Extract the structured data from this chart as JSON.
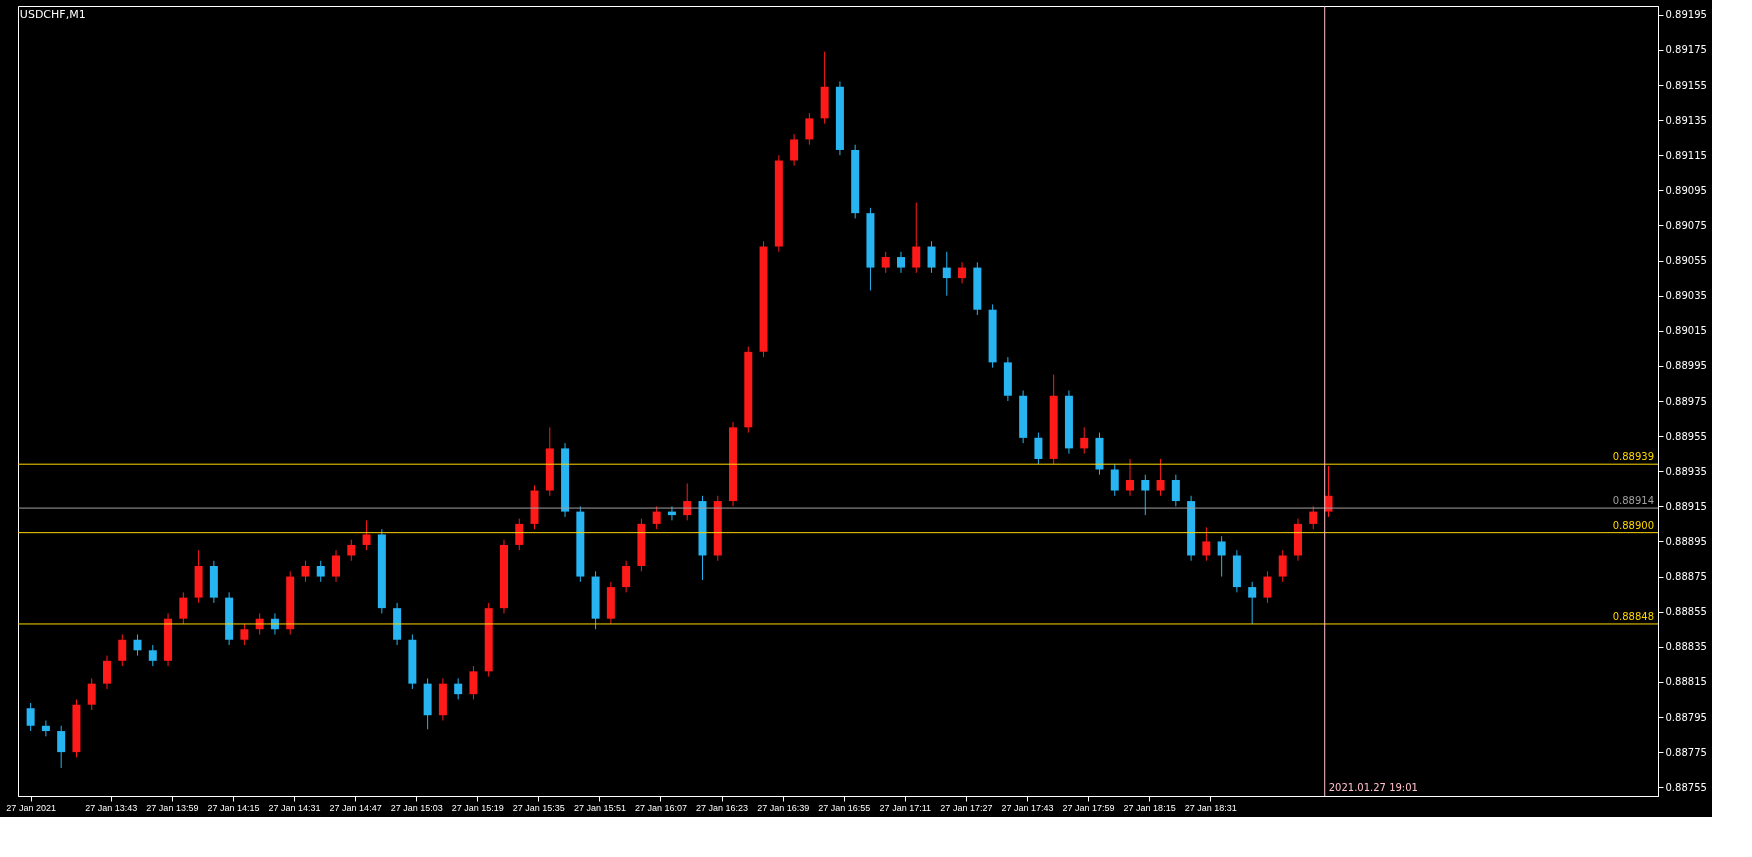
{
  "chart_data": {
    "type": "candlestick",
    "title": "USDCHF,M1",
    "x": [
      "2021-01-27T13:22",
      "2021-01-27T13:26",
      "2021-01-27T13:30",
      "2021-01-27T13:34",
      "2021-01-27T13:38",
      "2021-01-27T13:42",
      "2021-01-27T13:46",
      "2021-01-27T13:50",
      "2021-01-27T13:54",
      "2021-01-27T13:58",
      "2021-01-27T14:02",
      "2021-01-27T14:06",
      "2021-01-27T14:10",
      "2021-01-27T14:14",
      "2021-01-27T14:18",
      "2021-01-27T14:22",
      "2021-01-27T14:26",
      "2021-01-27T14:30",
      "2021-01-27T14:34",
      "2021-01-27T14:38",
      "2021-01-27T14:42",
      "2021-01-27T14:46",
      "2021-01-27T14:50",
      "2021-01-27T14:54",
      "2021-01-27T14:58",
      "2021-01-27T15:02",
      "2021-01-27T15:06",
      "2021-01-27T15:10",
      "2021-01-27T15:14",
      "2021-01-27T15:18",
      "2021-01-27T15:22",
      "2021-01-27T15:26",
      "2021-01-27T15:30",
      "2021-01-27T15:34",
      "2021-01-27T15:38",
      "2021-01-27T15:42",
      "2021-01-27T15:46",
      "2021-01-27T15:50",
      "2021-01-27T15:54",
      "2021-01-27T15:58",
      "2021-01-27T16:02",
      "2021-01-27T16:06",
      "2021-01-27T16:10",
      "2021-01-27T16:14",
      "2021-01-27T16:18",
      "2021-01-27T16:22",
      "2021-01-27T16:26",
      "2021-01-27T16:30",
      "2021-01-27T16:34",
      "2021-01-27T16:38",
      "2021-01-27T16:42",
      "2021-01-27T16:46",
      "2021-01-27T16:50",
      "2021-01-27T16:54",
      "2021-01-27T16:58",
      "2021-01-27T17:02",
      "2021-01-27T17:06",
      "2021-01-27T17:10",
      "2021-01-27T17:14",
      "2021-01-27T17:18",
      "2021-01-27T17:22",
      "2021-01-27T17:26",
      "2021-01-27T17:30",
      "2021-01-27T17:34",
      "2021-01-27T17:38",
      "2021-01-27T17:42",
      "2021-01-27T17:46",
      "2021-01-27T17:50",
      "2021-01-27T17:54",
      "2021-01-27T17:58",
      "2021-01-27T18:02",
      "2021-01-27T18:06",
      "2021-01-27T18:10",
      "2021-01-27T18:14",
      "2021-01-27T18:18",
      "2021-01-27T18:22",
      "2021-01-27T18:26",
      "2021-01-27T18:30",
      "2021-01-27T18:34",
      "2021-01-27T18:38",
      "2021-01-27T18:42",
      "2021-01-27T18:46",
      "2021-01-27T18:50",
      "2021-01-27T18:54",
      "2021-01-27T18:58",
      "2021-01-27T19:02"
    ],
    "ohlc": [
      [
        0.888,
        0.88803,
        0.88787,
        0.8879
      ],
      [
        0.8879,
        0.88793,
        0.88784,
        0.88787
      ],
      [
        0.88787,
        0.8879,
        0.88766,
        0.88775
      ],
      [
        0.88775,
        0.88805,
        0.88772,
        0.88802
      ],
      [
        0.88802,
        0.88817,
        0.88799,
        0.88814
      ],
      [
        0.88814,
        0.8883,
        0.88811,
        0.88827
      ],
      [
        0.88827,
        0.88842,
        0.88824,
        0.88839
      ],
      [
        0.88839,
        0.88842,
        0.8883,
        0.88833
      ],
      [
        0.88833,
        0.88836,
        0.88824,
        0.88827
      ],
      [
        0.88827,
        0.88854,
        0.88824,
        0.88851
      ],
      [
        0.88851,
        0.88866,
        0.88848,
        0.88863
      ],
      [
        0.88863,
        0.8889,
        0.8886,
        0.88881
      ],
      [
        0.88881,
        0.88884,
        0.8886,
        0.88863
      ],
      [
        0.88863,
        0.88866,
        0.88836,
        0.88839
      ],
      [
        0.88839,
        0.88848,
        0.88836,
        0.88845
      ],
      [
        0.88845,
        0.88854,
        0.88842,
        0.88851
      ],
      [
        0.88851,
        0.88854,
        0.88842,
        0.88845
      ],
      [
        0.88845,
        0.88878,
        0.88842,
        0.88875
      ],
      [
        0.88875,
        0.88884,
        0.88872,
        0.88881
      ],
      [
        0.88881,
        0.88884,
        0.88872,
        0.88875
      ],
      [
        0.88875,
        0.8889,
        0.88872,
        0.88887
      ],
      [
        0.88887,
        0.88896,
        0.88884,
        0.88893
      ],
      [
        0.88893,
        0.88907,
        0.8889,
        0.88899
      ],
      [
        0.88899,
        0.88902,
        0.88854,
        0.88857
      ],
      [
        0.88857,
        0.8886,
        0.88836,
        0.88839
      ],
      [
        0.88839,
        0.88842,
        0.88811,
        0.88814
      ],
      [
        0.88814,
        0.88817,
        0.88788,
        0.88796
      ],
      [
        0.88796,
        0.88817,
        0.88793,
        0.88814
      ],
      [
        0.88814,
        0.88817,
        0.88805,
        0.88808
      ],
      [
        0.88808,
        0.88824,
        0.88805,
        0.88821
      ],
      [
        0.88821,
        0.8886,
        0.88818,
        0.88857
      ],
      [
        0.88857,
        0.88896,
        0.88854,
        0.88893
      ],
      [
        0.88893,
        0.88908,
        0.8889,
        0.88905
      ],
      [
        0.88905,
        0.88927,
        0.88902,
        0.88924
      ],
      [
        0.88924,
        0.8896,
        0.88921,
        0.88948
      ],
      [
        0.88948,
        0.88951,
        0.88909,
        0.88912
      ],
      [
        0.88912,
        0.88915,
        0.88872,
        0.88875
      ],
      [
        0.88875,
        0.88878,
        0.88845,
        0.88851
      ],
      [
        0.88851,
        0.88872,
        0.88848,
        0.88869
      ],
      [
        0.88869,
        0.88884,
        0.88866,
        0.88881
      ],
      [
        0.88881,
        0.88908,
        0.88878,
        0.88905
      ],
      [
        0.88905,
        0.88915,
        0.88902,
        0.88912
      ],
      [
        0.88912,
        0.88915,
        0.88907,
        0.8891
      ],
      [
        0.8891,
        0.88928,
        0.88907,
        0.88918
      ],
      [
        0.88918,
        0.88921,
        0.88873,
        0.88887
      ],
      [
        0.88887,
        0.88921,
        0.88884,
        0.88918
      ],
      [
        0.88918,
        0.88963,
        0.88915,
        0.8896
      ],
      [
        0.8896,
        0.89006,
        0.88957,
        0.89003
      ],
      [
        0.89003,
        0.89066,
        0.89,
        0.89063
      ],
      [
        0.89063,
        0.89115,
        0.8906,
        0.89112
      ],
      [
        0.89112,
        0.89127,
        0.89109,
        0.89124
      ],
      [
        0.89124,
        0.89139,
        0.89121,
        0.89136
      ],
      [
        0.89136,
        0.89174,
        0.89133,
        0.89154
      ],
      [
        0.89154,
        0.89157,
        0.89115,
        0.89118
      ],
      [
        0.89118,
        0.89121,
        0.89079,
        0.89082
      ],
      [
        0.89082,
        0.89085,
        0.89038,
        0.89051
      ],
      [
        0.89051,
        0.8906,
        0.89048,
        0.89057
      ],
      [
        0.89057,
        0.8906,
        0.89048,
        0.89051
      ],
      [
        0.89051,
        0.89088,
        0.89048,
        0.89063
      ],
      [
        0.89063,
        0.89066,
        0.89048,
        0.89051
      ],
      [
        0.89051,
        0.8906,
        0.89035,
        0.89045
      ],
      [
        0.89045,
        0.89054,
        0.89042,
        0.89051
      ],
      [
        0.89051,
        0.89054,
        0.89024,
        0.89027
      ],
      [
        0.89027,
        0.8903,
        0.88994,
        0.88997
      ],
      [
        0.88997,
        0.89,
        0.88975,
        0.88978
      ],
      [
        0.88978,
        0.88981,
        0.88951,
        0.88954
      ],
      [
        0.88954,
        0.88957,
        0.88939,
        0.88942
      ],
      [
        0.88942,
        0.8899,
        0.88939,
        0.88978
      ],
      [
        0.88978,
        0.88981,
        0.88945,
        0.88948
      ],
      [
        0.88948,
        0.8896,
        0.88945,
        0.88954
      ],
      [
        0.88954,
        0.88957,
        0.88933,
        0.88936
      ],
      [
        0.88936,
        0.88939,
        0.88921,
        0.88924
      ],
      [
        0.88924,
        0.88942,
        0.88921,
        0.8893
      ],
      [
        0.8893,
        0.88933,
        0.8891,
        0.88924
      ],
      [
        0.88924,
        0.88942,
        0.88921,
        0.8893
      ],
      [
        0.8893,
        0.88933,
        0.88915,
        0.88918
      ],
      [
        0.88918,
        0.88921,
        0.88884,
        0.88887
      ],
      [
        0.88887,
        0.88903,
        0.88884,
        0.88895
      ],
      [
        0.88895,
        0.88898,
        0.88875,
        0.88887
      ],
      [
        0.88887,
        0.8889,
        0.88866,
        0.88869
      ],
      [
        0.88869,
        0.88872,
        0.88848,
        0.88863
      ],
      [
        0.88863,
        0.88878,
        0.8886,
        0.88875
      ],
      [
        0.88875,
        0.8889,
        0.88872,
        0.88887
      ],
      [
        0.88887,
        0.88908,
        0.88884,
        0.88905
      ],
      [
        0.88905,
        0.88915,
        0.88902,
        0.88912
      ],
      [
        0.88912,
        0.88938,
        0.88909,
        0.88921
      ]
    ],
    "xlim": [
      "2021-01-27T13:20",
      "2021-01-27T20:27"
    ],
    "xticks": [
      {
        "value": "2021-01-27T13:22",
        "label": "27 Jan 2021"
      },
      {
        "value": "2021-01-27T13:43",
        "label": "27 Jan 13:43"
      },
      {
        "value": "2021-01-27T13:59",
        "label": "27 Jan 13:59"
      },
      {
        "value": "2021-01-27T14:15",
        "label": "27 Jan 14:15"
      },
      {
        "value": "2021-01-27T14:31",
        "label": "27 Jan 14:31"
      },
      {
        "value": "2021-01-27T14:47",
        "label": "27 Jan 14:47"
      },
      {
        "value": "2021-01-27T15:03",
        "label": "27 Jan 15:03"
      },
      {
        "value": "2021-01-27T15:19",
        "label": "27 Jan 15:19"
      },
      {
        "value": "2021-01-27T15:35",
        "label": "27 Jan 15:35"
      },
      {
        "value": "2021-01-27T15:51",
        "label": "27 Jan 15:51"
      },
      {
        "value": "2021-01-27T16:07",
        "label": "27 Jan 16:07"
      },
      {
        "value": "2021-01-27T16:23",
        "label": "27 Jan 16:23"
      },
      {
        "value": "2021-01-27T16:39",
        "label": "27 Jan 16:39"
      },
      {
        "value": "2021-01-27T16:55",
        "label": "27 Jan 16:55"
      },
      {
        "value": "2021-01-27T17:11",
        "label": "27 Jan 17:11"
      },
      {
        "value": "2021-01-27T17:27",
        "label": "27 Jan 17:27"
      },
      {
        "value": "2021-01-27T17:43",
        "label": "27 Jan 17:43"
      },
      {
        "value": "2021-01-27T17:59",
        "label": "27 Jan 17:59"
      },
      {
        "value": "2021-01-27T18:15",
        "label": "27 Jan 18:15"
      },
      {
        "value": "2021-01-27T18:31",
        "label": "27 Jan 18:31"
      }
    ],
    "ylim": [
      0.8875,
      0.892
    ],
    "yticks": [
      0.88755,
      0.88775,
      0.88795,
      0.88815,
      0.88835,
      0.88855,
      0.88875,
      0.88895,
      0.88915,
      0.88935,
      0.88955,
      0.88975,
      0.88995,
      0.89015,
      0.89035,
      0.89055,
      0.89075,
      0.89095,
      0.89115,
      0.89135,
      0.89155,
      0.89175,
      0.89195
    ],
    "ref_lines": [
      {
        "axis": "y",
        "value": 0.88939,
        "label": "0.88939",
        "color": "#ffd700"
      },
      {
        "axis": "y",
        "value": 0.88914,
        "label": "0.88914",
        "color": "#a0a0a0"
      },
      {
        "axis": "y",
        "value": 0.889,
        "label": "0.88900",
        "color": "#ffd700"
      },
      {
        "axis": "y",
        "value": 0.88848,
        "label": "0.88848",
        "color": "#ffd700"
      },
      {
        "axis": "x",
        "value": "2021-01-27T19:01",
        "label": "2021.01.27 19:01",
        "color": "#ffc0cb"
      }
    ],
    "grid": false
  }
}
